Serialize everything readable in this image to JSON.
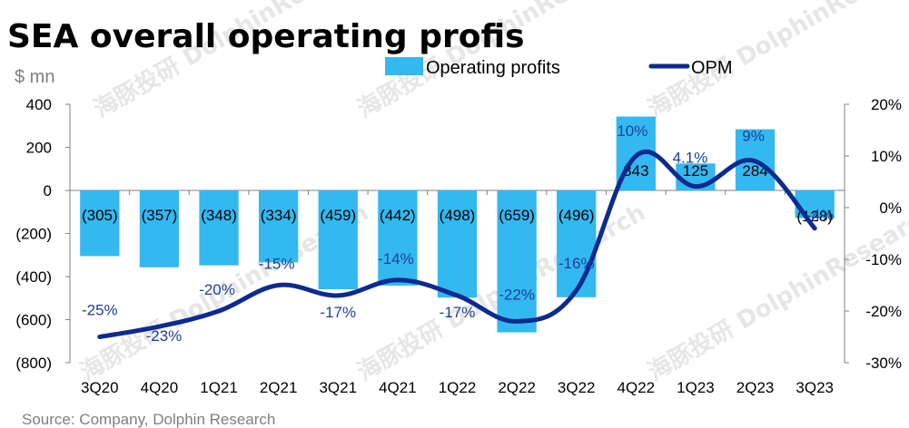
{
  "colors": {
    "bar": "#33b8f0",
    "line": "#0d2a8f",
    "opm_text": "#1f3f99",
    "axis": "#808080"
  },
  "chart_data": {
    "type": "bar",
    "title": "SEA overall operating profis",
    "ylabel": "$ mn",
    "categories": [
      "3Q20",
      "4Q20",
      "1Q21",
      "2Q21",
      "3Q21",
      "4Q21",
      "1Q22",
      "2Q22",
      "3Q22",
      "4Q22",
      "1Q23",
      "2Q23",
      "3Q23"
    ],
    "series": [
      {
        "name": "Operating profits",
        "type": "bar",
        "axis": "left",
        "values": [
          -305,
          -357,
          -348,
          -334,
          -459,
          -442,
          -498,
          -659,
          -496,
          343,
          125,
          284,
          -128
        ],
        "labels": [
          "(305)",
          "(357)",
          "(348)",
          "(334)",
          "(459)",
          "(442)",
          "(498)",
          "(659)",
          "(496)",
          "343",
          "125",
          "284",
          "(128)"
        ]
      },
      {
        "name": "OPM",
        "type": "line",
        "axis": "right",
        "values": [
          -25,
          -23,
          -20,
          -15,
          -17,
          -14,
          -17,
          -22,
          -16,
          10,
          4.1,
          9,
          -4
        ],
        "labels": [
          "-25%",
          "-23%",
          "-20%",
          "-15%",
          "-17%",
          "-14%",
          "-17%",
          "-22%",
          "-16%",
          "10%",
          "4.1%",
          "9%",
          "-4%"
        ]
      }
    ],
    "ylim": [
      -800,
      400
    ],
    "y2lim": [
      -30,
      20
    ],
    "yticks": [
      "400",
      "200",
      "0",
      "(200)",
      "(400)",
      "(600)",
      "(800)"
    ],
    "y2ticks": [
      "20%",
      "10%",
      "0%",
      "-10%",
      "-20%",
      "-30%"
    ],
    "legend_position": "top"
  },
  "source": "Source: Company, Dolphin Research",
  "watermark": "海豚投研 DolphinResearch"
}
